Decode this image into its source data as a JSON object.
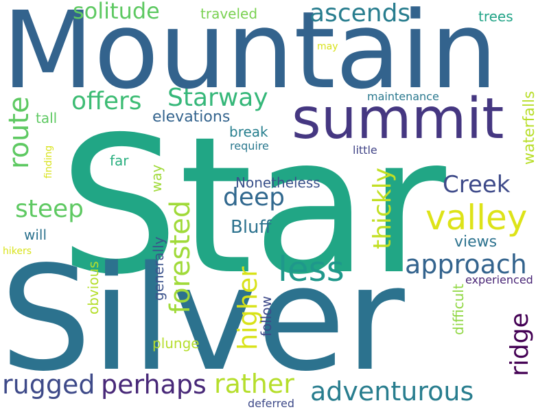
{
  "words": [
    {
      "text": "Star",
      "color": "#21a685",
      "vertical": false
    },
    {
      "text": "Silver",
      "color": "#2c728e",
      "vertical": false
    },
    {
      "text": "Mountain",
      "color": "#33638d",
      "vertical": false
    },
    {
      "text": "summit",
      "color": "#453781",
      "vertical": false
    },
    {
      "text": "valley",
      "color": "#dde318",
      "vertical": false
    },
    {
      "text": "route",
      "color": "#5ec962",
      "vertical": true
    },
    {
      "text": "adventurous",
      "color": "#287d8e",
      "vertical": false
    },
    {
      "text": "less",
      "color": "#1f988b",
      "vertical": false
    },
    {
      "text": "approach",
      "color": "#33638d",
      "vertical": false
    },
    {
      "text": "forested",
      "color": "#a0da39",
      "vertical": true
    },
    {
      "text": "ascends",
      "color": "#287d8e",
      "vertical": false
    },
    {
      "text": "rugged",
      "color": "#3e4a89",
      "vertical": false
    },
    {
      "text": "perhaps",
      "color": "#482878",
      "vertical": false
    },
    {
      "text": "rather",
      "color": "#b5de2b",
      "vertical": false
    },
    {
      "text": "higher",
      "color": "#d8e219",
      "vertical": true
    },
    {
      "text": "thickly",
      "color": "#c2df23",
      "vertical": true
    },
    {
      "text": "steep",
      "color": "#5ec962",
      "vertical": false
    },
    {
      "text": "solitude",
      "color": "#5ec962",
      "vertical": false
    },
    {
      "text": "Starway",
      "color": "#35b779",
      "vertical": false
    },
    {
      "text": "offers",
      "color": "#3dbc74",
      "vertical": false
    },
    {
      "text": "deep",
      "color": "#31688e",
      "vertical": false
    },
    {
      "text": "Creek",
      "color": "#3e4a89",
      "vertical": false
    },
    {
      "text": "ridge",
      "color": "#440154",
      "vertical": true
    },
    {
      "text": "Bluff",
      "color": "#2c728e",
      "vertical": false
    },
    {
      "text": "waterfalls",
      "color": "#b8de29",
      "vertical": true
    },
    {
      "text": "elevations",
      "color": "#33638d",
      "vertical": false
    },
    {
      "text": "views",
      "color": "#2c728e",
      "vertical": false
    },
    {
      "text": "Nonetheless",
      "color": "#3b528b",
      "vertical": false
    },
    {
      "text": "generally",
      "color": "#3b528b",
      "vertical": true
    },
    {
      "text": "difficult",
      "color": "#90d743",
      "vertical": true
    },
    {
      "text": "obvious",
      "color": "#b5de2b",
      "vertical": true
    },
    {
      "text": "follow",
      "color": "#3e4a89",
      "vertical": true
    },
    {
      "text": "plunge",
      "color": "#b5de2b",
      "vertical": false
    },
    {
      "text": "tall",
      "color": "#5ec962",
      "vertical": false
    },
    {
      "text": "break",
      "color": "#277f8e",
      "vertical": false
    },
    {
      "text": "far",
      "color": "#29af7f",
      "vertical": false
    },
    {
      "text": "way",
      "color": "#a0da39",
      "vertical": true
    },
    {
      "text": "will",
      "color": "#2c728e",
      "vertical": false
    },
    {
      "text": "traveled",
      "color": "#7ad151",
      "vertical": false
    },
    {
      "text": "trees",
      "color": "#20a386",
      "vertical": false
    },
    {
      "text": "experienced",
      "color": "#482475",
      "vertical": false
    },
    {
      "text": "deferred",
      "color": "#3e4a89",
      "vertical": false
    },
    {
      "text": "maintenance",
      "color": "#2a788e",
      "vertical": false
    },
    {
      "text": "require",
      "color": "#2a788e",
      "vertical": false
    },
    {
      "text": "little",
      "color": "#414487",
      "vertical": false
    },
    {
      "text": "finding",
      "color": "#d8e219",
      "vertical": true
    },
    {
      "text": "hikers",
      "color": "#d8e219",
      "vertical": false
    },
    {
      "text": "may",
      "color": "#d8e219",
      "vertical": false
    }
  ]
}
